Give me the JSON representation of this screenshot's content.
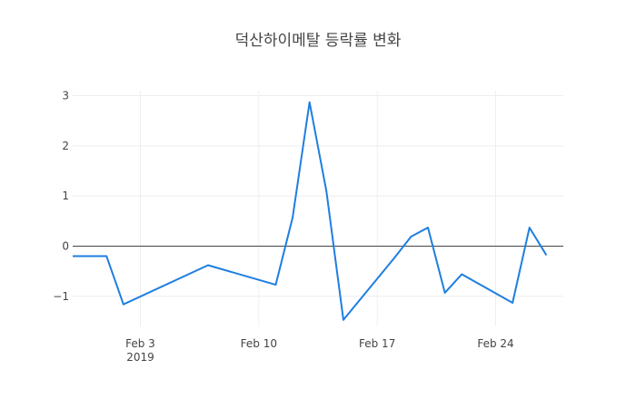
{
  "chart_data": {
    "type": "line",
    "title": "덕산하이메탈 등락률 변화",
    "x_axis": {
      "type": "date",
      "range": [
        "2019-01-30",
        "2019-02-28"
      ],
      "ticks": [
        {
          "date": "2019-02-03",
          "label": "Feb 3",
          "sublabel": "2019"
        },
        {
          "date": "2019-02-10",
          "label": "Feb 10",
          "sublabel": ""
        },
        {
          "date": "2019-02-17",
          "label": "Feb 17",
          "sublabel": ""
        },
        {
          "date": "2019-02-24",
          "label": "Feb 24",
          "sublabel": ""
        }
      ],
      "grid": true
    },
    "y_axis": {
      "range": [
        -1.6,
        3.1
      ],
      "ticks": [
        {
          "value": -1,
          "label": "−1"
        },
        {
          "value": 0,
          "label": "0"
        },
        {
          "value": 1,
          "label": "1"
        },
        {
          "value": 2,
          "label": "2"
        },
        {
          "value": 3,
          "label": "3"
        }
      ],
      "grid": true,
      "zeroline": true
    },
    "series": [
      {
        "color": "#1f7ee0",
        "x": [
          "2019-01-30",
          "2019-01-31",
          "2019-02-01",
          "2019-02-02",
          "2019-02-07",
          "2019-02-11",
          "2019-02-12",
          "2019-02-13",
          "2019-02-14",
          "2019-02-15",
          "2019-02-18",
          "2019-02-19",
          "2019-02-20",
          "2019-02-21",
          "2019-02-22",
          "2019-02-25",
          "2019-02-26",
          "2019-02-27"
        ],
        "y": [
          -0.2,
          -0.2,
          -0.2,
          -1.16,
          -0.38,
          -0.77,
          0.57,
          2.87,
          1.09,
          -1.47,
          -0.24,
          0.19,
          0.37,
          -0.93,
          -0.56,
          -1.13,
          0.37,
          -0.18
        ]
      }
    ]
  }
}
